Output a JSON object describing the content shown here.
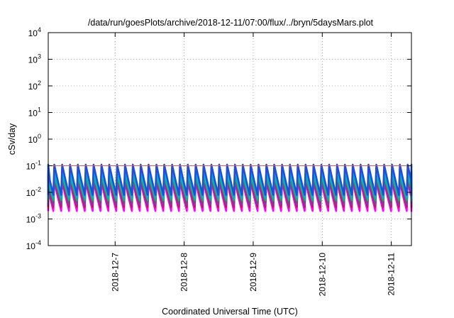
{
  "chart_data": {
    "type": "line",
    "title": "/data/run/goesPlots/archive/2018-12-11/07:00/flux/../bryn/5daysMars.plot",
    "xlabel": "Coordinated Universal Time (UTC)",
    "ylabel": "cSv/day",
    "y_scale": "log",
    "ylim": [
      0.0001,
      10000
    ],
    "xlim": [
      "2018-12-06T00:45",
      "2018-12-11T07:00"
    ],
    "x_ticks": [
      "2018-12-7",
      "2018-12-8",
      "2018-12-9",
      "2018-12-10",
      "2018-12-11"
    ],
    "y_ticks": [
      {
        "base": "10",
        "exp": "4"
      },
      {
        "base": "10",
        "exp": "3"
      },
      {
        "base": "10",
        "exp": "2"
      },
      {
        "base": "10",
        "exp": "1"
      },
      {
        "base": "10",
        "exp": "0"
      },
      {
        "base": "10",
        "exp": "-1"
      },
      {
        "base": "10",
        "exp": "-2"
      },
      {
        "base": "10",
        "exp": "-3"
      },
      {
        "base": "10",
        "exp": "-4"
      }
    ],
    "grid": true,
    "legend": "none",
    "reference_line": {
      "y": 0.1,
      "color": "#ff4d4d"
    },
    "oscillation_period_hours": 2.73,
    "series": [
      {
        "color": "#1f4fd8",
        "peak": 0.11,
        "trough": 0.008
      },
      {
        "color": "#00b3c7",
        "peak": 0.06,
        "trough": 0.006
      },
      {
        "color": "#2ea84a",
        "peak": 0.045,
        "trough": 0.005
      },
      {
        "color": "#7b3f9e",
        "peak": 0.035,
        "trough": 0.0035
      },
      {
        "color": "#c2185b",
        "peak": 0.03,
        "trough": 0.0028
      },
      {
        "color": "#ff00ff",
        "peak": 0.025,
        "trough": 0.002
      }
    ]
  }
}
